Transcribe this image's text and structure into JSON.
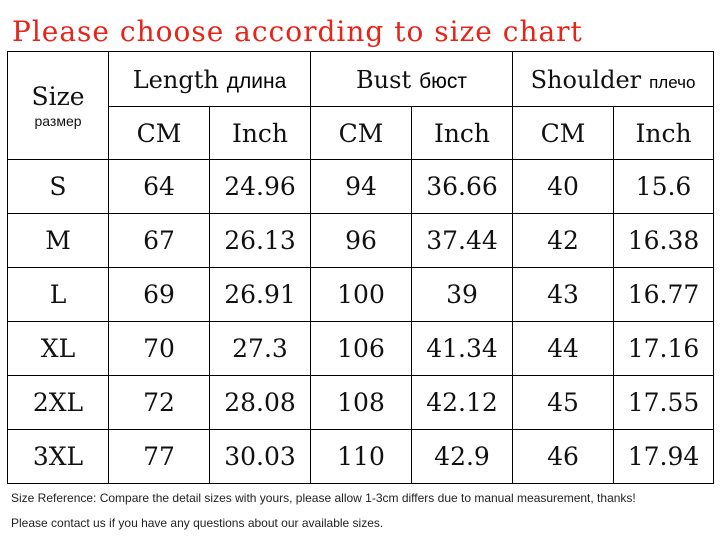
{
  "title": "Please choose according to size chart",
  "header": {
    "size": {
      "en": "Size",
      "ru": "размер"
    },
    "groups": [
      {
        "en": "Length",
        "ru": "длина"
      },
      {
        "en": "Bust",
        "ru": "бюст"
      },
      {
        "en": "Shoulder",
        "ru": "плечо"
      }
    ],
    "units": [
      "CM",
      "Inch",
      "CM",
      "Inch",
      "CM",
      "Inch"
    ]
  },
  "rows": [
    {
      "size": "S",
      "values": [
        "64",
        "24.96",
        "94",
        "36.66",
        "40",
        "15.6"
      ]
    },
    {
      "size": "M",
      "values": [
        "67",
        "26.13",
        "96",
        "37.44",
        "42",
        "16.38"
      ]
    },
    {
      "size": "L",
      "values": [
        "69",
        "26.91",
        "100",
        "39",
        "43",
        "16.77"
      ]
    },
    {
      "size": "XL",
      "values": [
        "70",
        "27.3",
        "106",
        "41.34",
        "44",
        "17.16"
      ]
    },
    {
      "size": "2XL",
      "values": [
        "72",
        "28.08",
        "108",
        "42.12",
        "45",
        "17.55"
      ]
    },
    {
      "size": "3XL",
      "values": [
        "77",
        "30.03",
        "110",
        "42.9",
        "46",
        "17.94"
      ]
    }
  ],
  "notes": [
    "Size Reference: Compare the detail sizes with yours, please allow 1-3cm differs due to manual measurement, thanks!",
    "Please contact us if you have any questions about our available sizes."
  ],
  "colors": {
    "title": "#e8231a",
    "border": "#000000",
    "text": "#111111"
  }
}
